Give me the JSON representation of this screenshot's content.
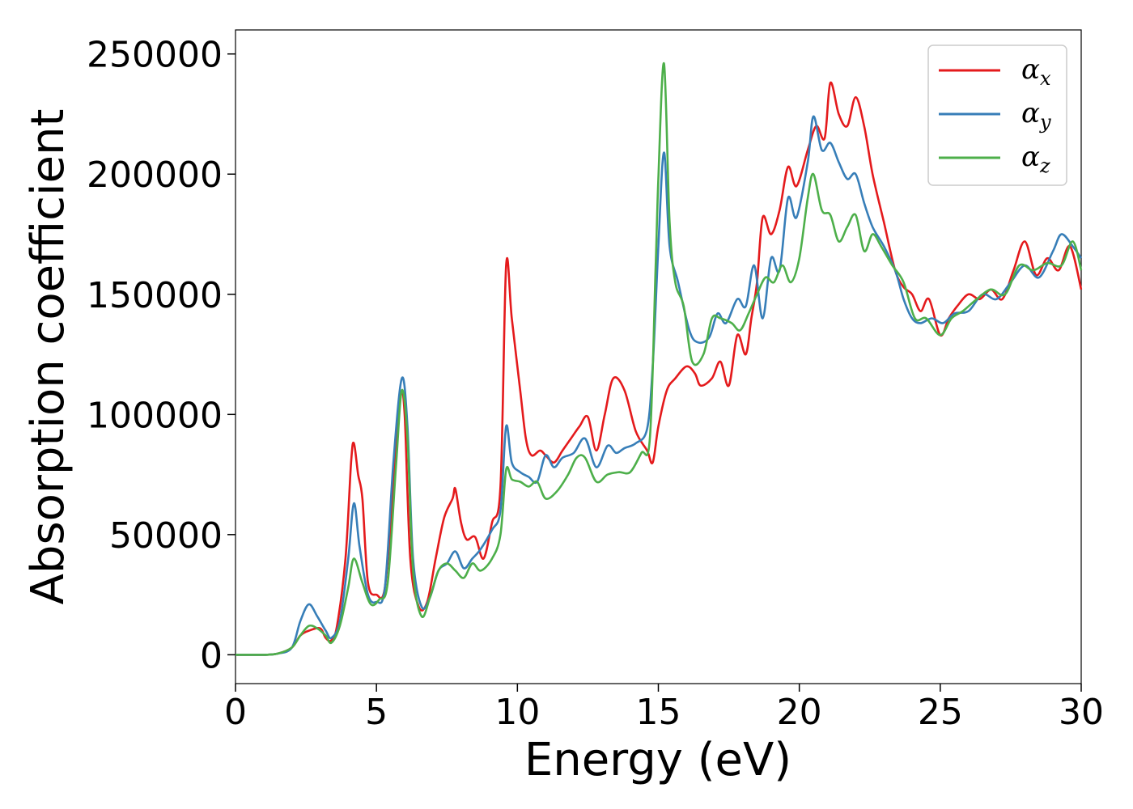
{
  "chart_data": {
    "type": "line",
    "title": "",
    "xlabel": "Energy (eV)",
    "ylabel": "Absorption coefficient",
    "xlim": [
      0,
      30
    ],
    "ylim": [
      -12000,
      260000
    ],
    "xticks": [
      0,
      5,
      10,
      15,
      20,
      25,
      30
    ],
    "yticks": [
      0,
      50000,
      100000,
      150000,
      200000,
      250000
    ],
    "grid": false,
    "legend_position": "top-right",
    "series": [
      {
        "name": "α_x",
        "symbol": "α",
        "subscript": "x",
        "color": "#e41a1c",
        "points": [
          [
            0,
            0
          ],
          [
            1,
            0
          ],
          [
            1.5,
            500
          ],
          [
            2,
            3000
          ],
          [
            2.3,
            8000
          ],
          [
            2.6,
            10000
          ],
          [
            3,
            11000
          ],
          [
            3.2,
            7000
          ],
          [
            3.4,
            6000
          ],
          [
            3.6,
            12000
          ],
          [
            3.9,
            40000
          ],
          [
            4.1,
            80000
          ],
          [
            4.2,
            88000
          ],
          [
            4.35,
            75000
          ],
          [
            4.5,
            65000
          ],
          [
            4.7,
            30000
          ],
          [
            5,
            25000
          ],
          [
            5.3,
            28000
          ],
          [
            5.6,
            70000
          ],
          [
            5.85,
            107000
          ],
          [
            6.0,
            100000
          ],
          [
            6.2,
            40000
          ],
          [
            6.5,
            20000
          ],
          [
            6.8,
            22000
          ],
          [
            7.1,
            40000
          ],
          [
            7.4,
            57000
          ],
          [
            7.7,
            65000
          ],
          [
            7.8,
            69000
          ],
          [
            8.0,
            55000
          ],
          [
            8.2,
            48000
          ],
          [
            8.5,
            49000
          ],
          [
            8.8,
            40000
          ],
          [
            9.1,
            55000
          ],
          [
            9.4,
            70000
          ],
          [
            9.6,
            162000
          ],
          [
            9.8,
            140000
          ],
          [
            10.1,
            110000
          ],
          [
            10.3,
            90000
          ],
          [
            10.5,
            83000
          ],
          [
            10.8,
            85000
          ],
          [
            11,
            83000
          ],
          [
            11.3,
            80000
          ],
          [
            11.6,
            85000
          ],
          [
            11.9,
            90000
          ],
          [
            12.2,
            95000
          ],
          [
            12.5,
            99000
          ],
          [
            12.8,
            85000
          ],
          [
            13.1,
            100000
          ],
          [
            13.4,
            115000
          ],
          [
            13.8,
            110000
          ],
          [
            14.2,
            93000
          ],
          [
            14.6,
            85000
          ],
          [
            14.8,
            80000
          ],
          [
            15,
            95000
          ],
          [
            15.3,
            110000
          ],
          [
            15.6,
            115000
          ],
          [
            16,
            120000
          ],
          [
            16.3,
            117000
          ],
          [
            16.5,
            112000
          ],
          [
            16.9,
            115000
          ],
          [
            17.2,
            122000
          ],
          [
            17.5,
            112000
          ],
          [
            17.8,
            133000
          ],
          [
            18.1,
            125000
          ],
          [
            18.3,
            140000
          ],
          [
            18.5,
            155000
          ],
          [
            18.7,
            182000
          ],
          [
            19,
            175000
          ],
          [
            19.3,
            185000
          ],
          [
            19.6,
            203000
          ],
          [
            19.9,
            195000
          ],
          [
            20.3,
            210000
          ],
          [
            20.6,
            220000
          ],
          [
            20.9,
            215000
          ],
          [
            21.1,
            238000
          ],
          [
            21.4,
            225000
          ],
          [
            21.7,
            220000
          ],
          [
            22,
            232000
          ],
          [
            22.3,
            220000
          ],
          [
            22.6,
            200000
          ],
          [
            23,
            180000
          ],
          [
            23.4,
            160000
          ],
          [
            23.7,
            153000
          ],
          [
            24,
            150000
          ],
          [
            24.3,
            143000
          ],
          [
            24.6,
            148000
          ],
          [
            25,
            133000
          ],
          [
            25.3,
            140000
          ],
          [
            25.6,
            145000
          ],
          [
            26,
            150000
          ],
          [
            26.4,
            148000
          ],
          [
            26.8,
            152000
          ],
          [
            27.2,
            148000
          ],
          [
            27.6,
            160000
          ],
          [
            28,
            172000
          ],
          [
            28.4,
            158000
          ],
          [
            28.8,
            165000
          ],
          [
            29.2,
            160000
          ],
          [
            29.6,
            170000
          ],
          [
            30,
            152000
          ]
        ]
      },
      {
        "name": "α_y",
        "symbol": "α",
        "subscript": "y",
        "color": "#377eb8",
        "points": [
          [
            0,
            0
          ],
          [
            1,
            0
          ],
          [
            1.5,
            500
          ],
          [
            2,
            3000
          ],
          [
            2.3,
            14000
          ],
          [
            2.6,
            21000
          ],
          [
            2.9,
            16000
          ],
          [
            3.2,
            10000
          ],
          [
            3.4,
            7000
          ],
          [
            3.7,
            14000
          ],
          [
            4.0,
            40000
          ],
          [
            4.2,
            63000
          ],
          [
            4.4,
            45000
          ],
          [
            4.7,
            25000
          ],
          [
            5.0,
            22000
          ],
          [
            5.3,
            28000
          ],
          [
            5.6,
            80000
          ],
          [
            5.9,
            115000
          ],
          [
            6.1,
            95000
          ],
          [
            6.3,
            40000
          ],
          [
            6.6,
            20000
          ],
          [
            6.9,
            24000
          ],
          [
            7.2,
            35000
          ],
          [
            7.5,
            38000
          ],
          [
            7.8,
            43000
          ],
          [
            8.1,
            36000
          ],
          [
            8.4,
            40000
          ],
          [
            8.7,
            44000
          ],
          [
            9.1,
            52000
          ],
          [
            9.4,
            60000
          ],
          [
            9.6,
            95000
          ],
          [
            9.8,
            80000
          ],
          [
            10.1,
            76000
          ],
          [
            10.4,
            74000
          ],
          [
            10.7,
            72000
          ],
          [
            11,
            83000
          ],
          [
            11.3,
            78000
          ],
          [
            11.6,
            82000
          ],
          [
            12,
            84000
          ],
          [
            12.4,
            90000
          ],
          [
            12.8,
            78000
          ],
          [
            13.2,
            87000
          ],
          [
            13.5,
            84000
          ],
          [
            13.8,
            86000
          ],
          [
            14.2,
            88000
          ],
          [
            14.6,
            94000
          ],
          [
            14.8,
            120000
          ],
          [
            15.0,
            170000
          ],
          [
            15.2,
            209000
          ],
          [
            15.4,
            170000
          ],
          [
            15.7,
            155000
          ],
          [
            16.1,
            135000
          ],
          [
            16.4,
            130000
          ],
          [
            16.8,
            132000
          ],
          [
            17.1,
            142000
          ],
          [
            17.4,
            138000
          ],
          [
            17.8,
            148000
          ],
          [
            18.1,
            145000
          ],
          [
            18.4,
            162000
          ],
          [
            18.7,
            140000
          ],
          [
            19,
            165000
          ],
          [
            19.3,
            160000
          ],
          [
            19.6,
            190000
          ],
          [
            19.9,
            182000
          ],
          [
            20.3,
            205000
          ],
          [
            20.5,
            224000
          ],
          [
            20.8,
            210000
          ],
          [
            21.1,
            213000
          ],
          [
            21.4,
            205000
          ],
          [
            21.7,
            198000
          ],
          [
            22.0,
            200000
          ],
          [
            22.3,
            188000
          ],
          [
            22.6,
            178000
          ],
          [
            23,
            170000
          ],
          [
            23.4,
            160000
          ],
          [
            23.7,
            148000
          ],
          [
            24,
            140000
          ],
          [
            24.3,
            138000
          ],
          [
            24.7,
            140000
          ],
          [
            25.1,
            138000
          ],
          [
            25.5,
            142000
          ],
          [
            26,
            143000
          ],
          [
            26.5,
            150000
          ],
          [
            27,
            148000
          ],
          [
            27.5,
            155000
          ],
          [
            28,
            162000
          ],
          [
            28.5,
            157000
          ],
          [
            29,
            168000
          ],
          [
            29.3,
            175000
          ],
          [
            29.7,
            170000
          ],
          [
            30,
            165000
          ]
        ]
      },
      {
        "name": "α_z",
        "symbol": "α",
        "subscript": "z",
        "color": "#4daf4a",
        "points": [
          [
            0,
            0
          ],
          [
            1,
            0
          ],
          [
            1.5,
            500
          ],
          [
            2,
            3000
          ],
          [
            2.3,
            8000
          ],
          [
            2.6,
            12000
          ],
          [
            2.9,
            11000
          ],
          [
            3.2,
            8000
          ],
          [
            3.4,
            5000
          ],
          [
            3.7,
            12000
          ],
          [
            4.0,
            28000
          ],
          [
            4.2,
            40000
          ],
          [
            4.5,
            30000
          ],
          [
            4.8,
            21000
          ],
          [
            5.1,
            23000
          ],
          [
            5.4,
            30000
          ],
          [
            5.7,
            80000
          ],
          [
            5.9,
            110000
          ],
          [
            6.1,
            90000
          ],
          [
            6.3,
            35000
          ],
          [
            6.6,
            16000
          ],
          [
            6.9,
            24000
          ],
          [
            7.2,
            35000
          ],
          [
            7.5,
            38000
          ],
          [
            7.8,
            35000
          ],
          [
            8.1,
            32000
          ],
          [
            8.4,
            38000
          ],
          [
            8.7,
            35000
          ],
          [
            9.1,
            40000
          ],
          [
            9.4,
            50000
          ],
          [
            9.6,
            77000
          ],
          [
            9.8,
            73000
          ],
          [
            10.1,
            72000
          ],
          [
            10.4,
            70000
          ],
          [
            10.7,
            72000
          ],
          [
            11,
            65000
          ],
          [
            11.4,
            68000
          ],
          [
            11.8,
            75000
          ],
          [
            12.1,
            82000
          ],
          [
            12.4,
            82000
          ],
          [
            12.8,
            72000
          ],
          [
            13.2,
            75000
          ],
          [
            13.6,
            76000
          ],
          [
            14.0,
            76000
          ],
          [
            14.4,
            84000
          ],
          [
            14.7,
            90000
          ],
          [
            14.9,
            160000
          ],
          [
            15.0,
            198000
          ],
          [
            15.2,
            246000
          ],
          [
            15.4,
            180000
          ],
          [
            15.6,
            155000
          ],
          [
            15.9,
            145000
          ],
          [
            16.2,
            122000
          ],
          [
            16.6,
            125000
          ],
          [
            16.9,
            140000
          ],
          [
            17.2,
            140000
          ],
          [
            17.6,
            138000
          ],
          [
            17.9,
            135000
          ],
          [
            18.2,
            142000
          ],
          [
            18.5,
            150000
          ],
          [
            18.8,
            157000
          ],
          [
            19.1,
            155000
          ],
          [
            19.4,
            162000
          ],
          [
            19.7,
            155000
          ],
          [
            20.0,
            165000
          ],
          [
            20.3,
            190000
          ],
          [
            20.5,
            200000
          ],
          [
            20.8,
            185000
          ],
          [
            21.1,
            183000
          ],
          [
            21.4,
            172000
          ],
          [
            21.7,
            178000
          ],
          [
            22.0,
            183000
          ],
          [
            22.3,
            168000
          ],
          [
            22.6,
            175000
          ],
          [
            22.9,
            170000
          ],
          [
            23.3,
            162000
          ],
          [
            23.7,
            155000
          ],
          [
            24.1,
            140000
          ],
          [
            24.5,
            140000
          ],
          [
            25.0,
            133000
          ],
          [
            25.4,
            140000
          ],
          [
            25.8,
            143000
          ],
          [
            26.3,
            148000
          ],
          [
            26.8,
            152000
          ],
          [
            27.3,
            150000
          ],
          [
            27.8,
            162000
          ],
          [
            28.3,
            160000
          ],
          [
            28.8,
            163000
          ],
          [
            29.3,
            162000
          ],
          [
            29.7,
            172000
          ],
          [
            30,
            160000
          ]
        ]
      }
    ]
  }
}
